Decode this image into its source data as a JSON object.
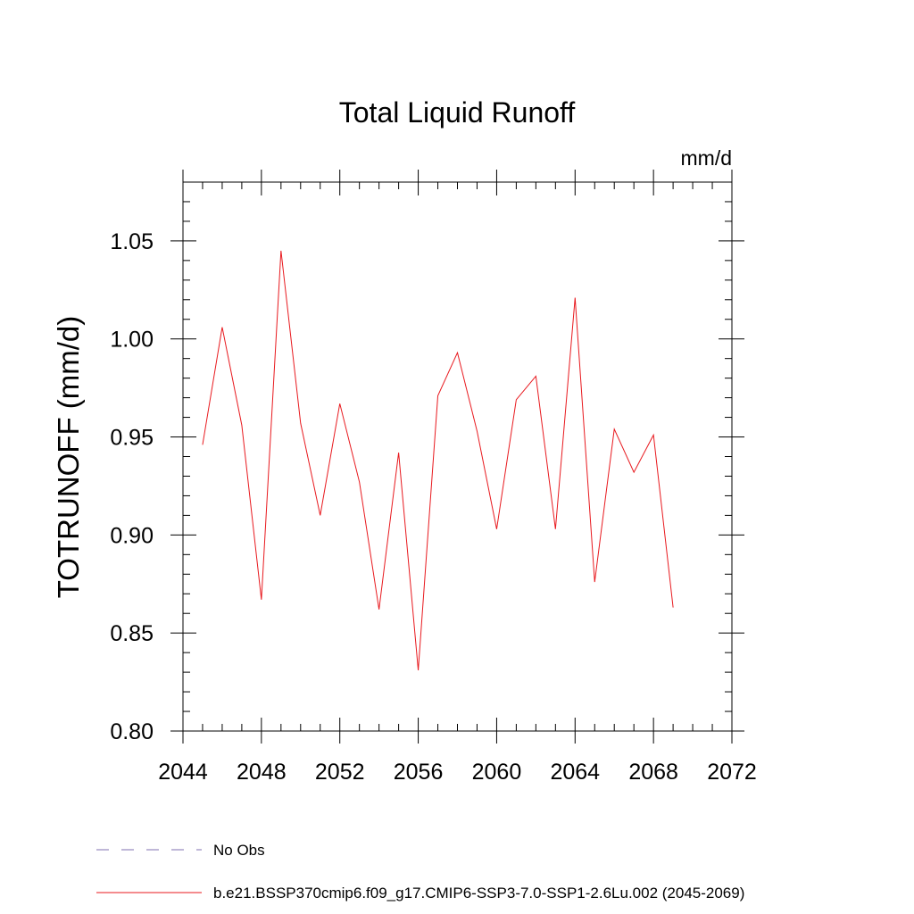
{
  "chart_data": {
    "type": "line",
    "title": "Total Liquid Runoff",
    "units_label": "mm/d",
    "xlabel": "",
    "ylabel": "TOTRUNOFF  (mm/d)",
    "xlim": [
      2044,
      2072
    ],
    "ylim": [
      0.8,
      1.08
    ],
    "x_ticks": [
      "2044",
      "2048",
      "2052",
      "2056",
      "2060",
      "2064",
      "2068",
      "2072"
    ],
    "y_ticks": [
      "0.80",
      "0.85",
      "0.90",
      "0.95",
      "1.00",
      "1.05"
    ],
    "grid": false,
    "legend_position": "bottom-left",
    "series": [
      {
        "name": "b.e21.BSSP370cmip6.f09_g17.CMIP6-SSP3-7.0-SSP1-2.6Lu.002 (2045-2069)",
        "color": "#e8191e",
        "style": "solid",
        "x": [
          2045,
          2046,
          2047,
          2048,
          2049,
          2050,
          2051,
          2052,
          2053,
          2054,
          2055,
          2056,
          2057,
          2058,
          2059,
          2060,
          2061,
          2062,
          2063,
          2064,
          2065,
          2066,
          2067,
          2068,
          2069
        ],
        "y": [
          0.946,
          1.006,
          0.956,
          0.867,
          1.045,
          0.957,
          0.91,
          0.967,
          0.927,
          0.862,
          0.942,
          0.831,
          0.971,
          0.993,
          0.953,
          0.903,
          0.969,
          0.981,
          0.903,
          1.021,
          0.876,
          0.954,
          0.932,
          0.951,
          0.863
        ]
      },
      {
        "name": "No Obs",
        "color": "#7f6fb2",
        "style": "dashed",
        "x": [],
        "y": []
      }
    ]
  }
}
